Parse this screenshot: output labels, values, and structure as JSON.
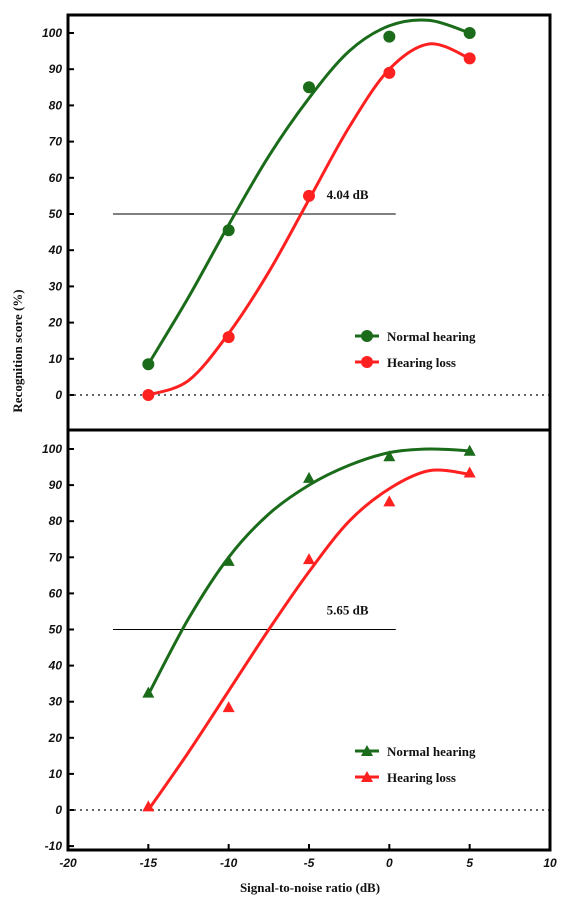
{
  "chart_data": [
    {
      "type": "scatter",
      "panel": "top",
      "marker": "circle",
      "ylabel": "Recognition score (%)",
      "ylim": [
        -5,
        105
      ],
      "yticks": [
        0,
        10,
        20,
        30,
        40,
        50,
        60,
        70,
        80,
        90,
        100
      ],
      "xlim": [
        -20,
        10
      ],
      "reference_line": {
        "y": 50,
        "x_from": -17.2,
        "x_to": 0.4,
        "linestyle": "solid"
      },
      "zero_line": {
        "y": 0,
        "linestyle": "dotted"
      },
      "annotation": "4.04 dB",
      "legend_placement": "lower-right",
      "series": [
        {
          "name": "Normal hearing",
          "color": "#1a6b1a",
          "x": [
            -15,
            -10,
            -5,
            0,
            5
          ],
          "y": [
            8.5,
            45.5,
            85,
            99,
            100
          ],
          "curve_x": [
            -15,
            -12.5,
            -10,
            -7.5,
            -5,
            -2.5,
            0,
            2.5,
            5
          ],
          "curve_y": [
            8.5,
            27,
            47,
            66,
            82,
            95,
            102,
            103.5,
            100
          ]
        },
        {
          "name": "Hearing loss",
          "color": "#ff2020",
          "x": [
            -15,
            -10,
            -5,
            0,
            5
          ],
          "y": [
            0,
            16,
            55,
            89,
            93
          ],
          "curve_x": [
            -15,
            -12.5,
            -10,
            -7.5,
            -5,
            -2.5,
            0,
            2.5,
            5
          ],
          "curve_y": [
            0,
            4,
            17,
            34,
            54,
            74,
            90,
            97,
            93
          ]
        }
      ]
    },
    {
      "type": "scatter",
      "panel": "bottom",
      "marker": "triangle",
      "xlabel": "Signal-to-noise ratio (dB)",
      "ylim": [
        -10,
        105
      ],
      "yticks": [
        -10,
        0,
        10,
        20,
        30,
        40,
        50,
        60,
        70,
        80,
        90,
        100
      ],
      "xlim": [
        -20,
        10
      ],
      "xticks": [
        -20,
        -15,
        -10,
        -5,
        0,
        5,
        10
      ],
      "reference_line": {
        "y": 50,
        "x_from": -17.2,
        "x_to": 0.4,
        "linestyle": "solid"
      },
      "zero_line": {
        "y": 0,
        "linestyle": "dotted"
      },
      "annotation": "5.65 dB",
      "legend_placement": "lower-right",
      "series": [
        {
          "name": "Normal hearing",
          "color": "#1a6b1a",
          "x": [
            -15,
            -10,
            -5,
            0,
            5
          ],
          "y": [
            32.5,
            69,
            92,
            98,
            99.5
          ],
          "curve_x": [
            -15,
            -12.5,
            -10,
            -7.5,
            -5,
            -2.5,
            0,
            2.5,
            5
          ],
          "curve_y": [
            32,
            53,
            70,
            82,
            90,
            95.5,
            99,
            100,
            99.5
          ]
        },
        {
          "name": "Hearing loss",
          "color": "#ff2020",
          "x": [
            -15,
            -10,
            -5,
            0,
            5
          ],
          "y": [
            1,
            28.5,
            69.5,
            85.5,
            93.5
          ],
          "curve_x": [
            -15,
            -12.5,
            -10,
            -7.5,
            -5,
            -2.5,
            0,
            2.5,
            5
          ],
          "curve_y": [
            0,
            16,
            33,
            50,
            66,
            80,
            89,
            94,
            93
          ]
        }
      ]
    }
  ]
}
